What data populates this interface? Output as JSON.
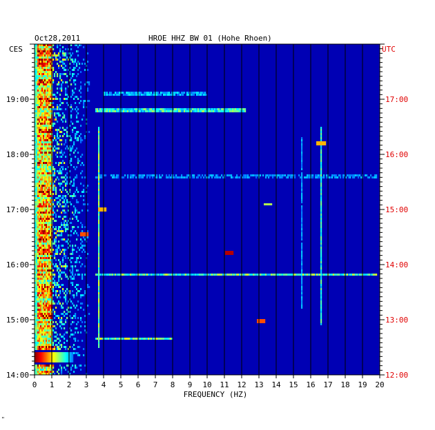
{
  "header": {
    "date": "Oct28,2011",
    "station": "HROE HHZ BW 01 (Hohe Rhoen)",
    "left_zone": "CES",
    "right_zone": "UTC"
  },
  "corner_mark": "\"",
  "chart_data": {
    "type": "heatmap",
    "title": "HROE HHZ BW 01 (Hohe Rhoen)",
    "xlabel": "FREQUENCY (HZ)",
    "ylabel": "",
    "xlim": [
      0,
      20
    ],
    "x_ticks": [
      0,
      1,
      2,
      3,
      4,
      5,
      6,
      7,
      8,
      9,
      10,
      11,
      12,
      13,
      14,
      15,
      16,
      17,
      18,
      19,
      20
    ],
    "grid": true,
    "y_left": {
      "zone": "CES",
      "range_hours": [
        14.0,
        20.0
      ],
      "ticks": [
        {
          "hour": 19,
          "label": "19:00"
        },
        {
          "hour": 18,
          "label": "18:00"
        },
        {
          "hour": 17,
          "label": "17:00"
        },
        {
          "hour": 16,
          "label": "16:00"
        },
        {
          "hour": 15,
          "label": "15:00"
        },
        {
          "hour": 14,
          "label": "14:00"
        }
      ]
    },
    "y_right": {
      "zone": "UTC",
      "color": "#e00000",
      "ticks": [
        {
          "hour": 19,
          "label": "17:00"
        },
        {
          "hour": 18,
          "label": "16:00"
        },
        {
          "hour": 17,
          "label": "15:00"
        },
        {
          "hour": 16,
          "label": "14:00"
        },
        {
          "hour": 15,
          "label": "13:00"
        },
        {
          "hour": 14,
          "label": "12:00"
        }
      ]
    },
    "colormap": [
      "#00008b",
      "#0000ff",
      "#0080ff",
      "#00ffff",
      "#80ff80",
      "#ffff00",
      "#ff8000",
      "#ff0000",
      "#800000"
    ],
    "background_color": "#0000b4",
    "features": {
      "low_freq_band": {
        "freq_range_hz": [
          0.2,
          1.0
        ],
        "intensity": 0.85
      },
      "microseism_band": {
        "freq_range_hz": [
          1.0,
          3.2
        ],
        "intensity": 0.4
      },
      "tonal_lines": [
        {
          "freq_hz": 3.7,
          "hour_range": [
            14.5,
            18.5
          ],
          "intensity": 0.55
        },
        {
          "freq_hz": 16.6,
          "hour_range": [
            14.9,
            18.5
          ],
          "intensity": 0.45
        },
        {
          "freq_hz": 15.5,
          "hour_range": [
            15.2,
            18.3
          ],
          "intensity": 0.3
        }
      ],
      "horizontal_bursts": [
        {
          "hour": 18.8,
          "freq_range_hz": [
            3.5,
            12.2
          ],
          "intensity": 0.5
        },
        {
          "hour": 19.1,
          "freq_range_hz": [
            4.0,
            10.0
          ],
          "intensity": 0.35
        },
        {
          "hour": 15.82,
          "freq_range_hz": [
            3.5,
            19.8
          ],
          "intensity": 0.55
        },
        {
          "hour": 14.66,
          "freq_range_hz": [
            3.5,
            8.0
          ],
          "intensity": 0.6
        },
        {
          "hour": 17.6,
          "freq_range_hz": [
            3.5,
            19.8
          ],
          "intensity": 0.3
        }
      ],
      "gap_rows": [
        {
          "hour_range": [
            14.2,
            14.32
          ],
          "intensity": 0.05
        },
        {
          "hour_range": [
            14.42,
            14.45
          ],
          "intensity": 0.05
        }
      ],
      "strong_event": {
        "hour_range": [
          14.22,
          14.4
        ],
        "freq_range_hz": [
          0.0,
          2.2
        ],
        "intensity": 1.0
      },
      "spots": [
        {
          "hour": 14.98,
          "freq_hz": 13.1,
          "intensity": 0.8
        },
        {
          "hour": 16.22,
          "freq_hz": 11.3,
          "intensity": 0.95
        },
        {
          "hour": 18.2,
          "freq_hz": 16.6,
          "intensity": 0.7
        },
        {
          "hour": 17.1,
          "freq_hz": 13.5,
          "intensity": 0.55
        },
        {
          "hour": 17.0,
          "freq_hz": 3.9,
          "intensity": 0.7
        },
        {
          "hour": 16.55,
          "freq_hz": 2.9,
          "intensity": 0.8
        }
      ]
    }
  }
}
